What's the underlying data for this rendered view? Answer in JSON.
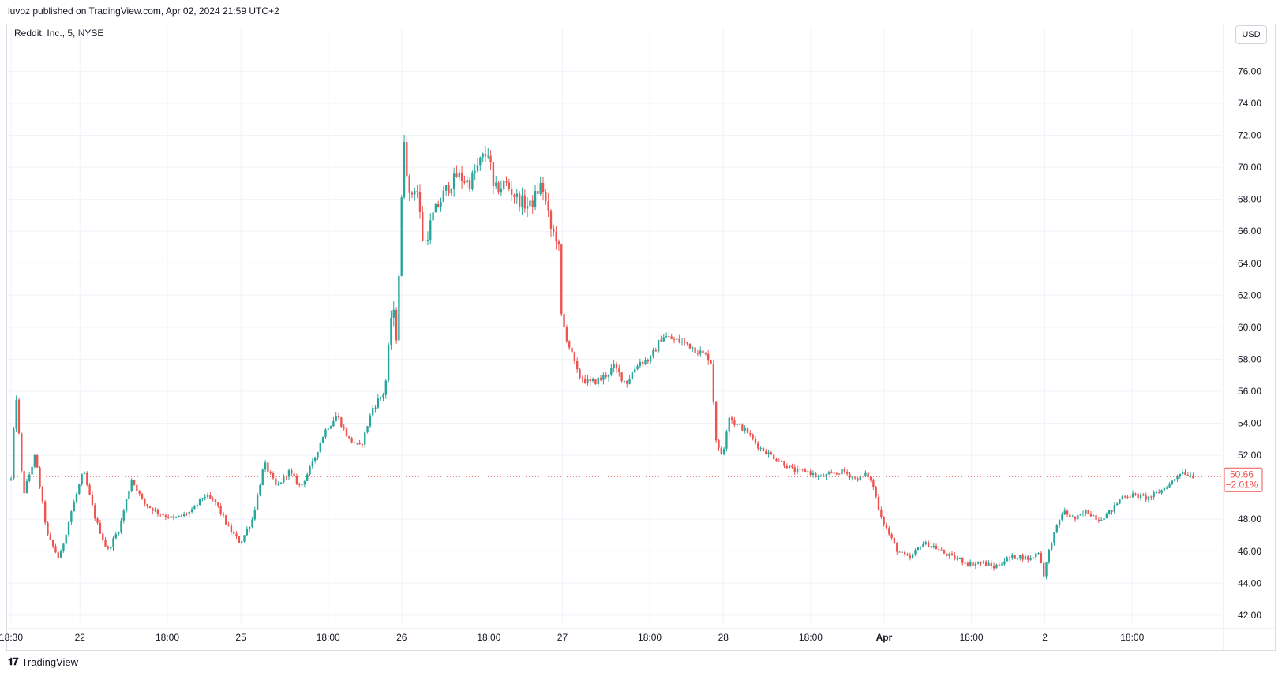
{
  "header": {
    "published": "luvoz published on TradingView.com, Apr 02, 2024 21:59 UTC+2",
    "symbol": "Reddit, Inc., 5, NYSE",
    "currency_button": "USD"
  },
  "footer": {
    "brand": "TradingView",
    "logo": "𝟏𝟕"
  },
  "colors": {
    "up": "#26a69a",
    "down": "#ef5350",
    "grid": "#f0f3fa",
    "axis_text": "#131722"
  },
  "chart_data": {
    "type": "candlestick",
    "symbol": "Reddit, Inc., 5, NYSE",
    "currency": "USD",
    "ylim": [
      41.5,
      77.5
    ],
    "y_ticks": [
      "42.00",
      "44.00",
      "46.00",
      "48.00",
      "50.00",
      "52.00",
      "54.00",
      "56.00",
      "58.00",
      "60.00",
      "62.00",
      "64.00",
      "66.00",
      "68.00",
      "70.00",
      "72.00",
      "74.00",
      "76.00"
    ],
    "x_ticks": [
      "18:30",
      "22",
      "18:00",
      "25",
      "18:00",
      "26",
      "18:00",
      "27",
      "18:00",
      "28",
      "18:00",
      "Apr",
      "18:00",
      "2",
      "18:00"
    ],
    "x_tick_pos": [
      0.0,
      0.0571,
      0.1296,
      0.1905,
      0.2629,
      0.3238,
      0.3962,
      0.4571,
      0.5295,
      0.5905,
      0.6629,
      0.7238,
      0.7962,
      0.8571,
      0.9295
    ],
    "grid": true,
    "last_price": {
      "value": "50.66",
      "change": "−2.01%"
    },
    "path": [
      [
        0.0,
        50.5
      ],
      [
        0.004,
        56.0
      ],
      [
        0.01,
        49.5
      ],
      [
        0.02,
        52.0
      ],
      [
        0.03,
        47.0
      ],
      [
        0.04,
        45.5
      ],
      [
        0.05,
        48.5
      ],
      [
        0.06,
        51.0
      ],
      [
        0.07,
        48.0
      ],
      [
        0.08,
        46.0
      ],
      [
        0.09,
        47.5
      ],
      [
        0.1,
        50.5
      ],
      [
        0.11,
        49.0
      ],
      [
        0.12,
        48.5
      ],
      [
        0.135,
        48.0
      ],
      [
        0.15,
        48.5
      ],
      [
        0.16,
        49.5
      ],
      [
        0.17,
        49.0
      ],
      [
        0.18,
        47.5
      ],
      [
        0.19,
        46.5
      ],
      [
        0.2,
        48.0
      ],
      [
        0.21,
        51.5
      ],
      [
        0.22,
        50.0
      ],
      [
        0.23,
        51.0
      ],
      [
        0.24,
        50.0
      ],
      [
        0.25,
        51.5
      ],
      [
        0.26,
        53.5
      ],
      [
        0.27,
        54.5
      ],
      [
        0.28,
        53.0
      ],
      [
        0.29,
        52.5
      ],
      [
        0.3,
        55.0
      ],
      [
        0.31,
        56.0
      ],
      [
        0.316,
        61.5
      ],
      [
        0.32,
        59.0
      ],
      [
        0.322,
        64.5
      ],
      [
        0.326,
        72.0
      ],
      [
        0.33,
        68.0
      ],
      [
        0.336,
        69.0
      ],
      [
        0.342,
        65.0
      ],
      [
        0.35,
        67.0
      ],
      [
        0.36,
        68.5
      ],
      [
        0.37,
        69.5
      ],
      [
        0.38,
        69.0
      ],
      [
        0.39,
        70.5
      ],
      [
        0.396,
        71.0
      ],
      [
        0.4,
        68.5
      ],
      [
        0.41,
        69.0
      ],
      [
        0.42,
        68.0
      ],
      [
        0.43,
        67.5
      ],
      [
        0.44,
        69.0
      ],
      [
        0.448,
        66.0
      ],
      [
        0.454,
        65.5
      ],
      [
        0.455,
        61.0
      ],
      [
        0.46,
        59.5
      ],
      [
        0.47,
        57.0
      ],
      [
        0.48,
        56.5
      ],
      [
        0.49,
        56.8
      ],
      [
        0.5,
        57.5
      ],
      [
        0.51,
        56.5
      ],
      [
        0.52,
        57.8
      ],
      [
        0.53,
        58.0
      ],
      [
        0.54,
        59.5
      ],
      [
        0.55,
        59.2
      ],
      [
        0.56,
        59.0
      ],
      [
        0.57,
        58.5
      ],
      [
        0.58,
        58.0
      ],
      [
        0.585,
        52.5
      ],
      [
        0.59,
        52.0
      ],
      [
        0.595,
        54.5
      ],
      [
        0.6,
        54.0
      ],
      [
        0.61,
        53.5
      ],
      [
        0.62,
        52.5
      ],
      [
        0.63,
        52.0
      ],
      [
        0.64,
        51.5
      ],
      [
        0.65,
        51.0
      ],
      [
        0.66,
        51.0
      ],
      [
        0.67,
        50.6
      ],
      [
        0.68,
        50.8
      ],
      [
        0.69,
        51.0
      ],
      [
        0.7,
        50.5
      ],
      [
        0.71,
        50.8
      ],
      [
        0.715,
        50.0
      ],
      [
        0.72,
        48.5
      ],
      [
        0.725,
        47.5
      ],
      [
        0.735,
        46.0
      ],
      [
        0.745,
        45.5
      ],
      [
        0.755,
        46.5
      ],
      [
        0.765,
        46.3
      ],
      [
        0.775,
        45.8
      ],
      [
        0.785,
        45.5
      ],
      [
        0.795,
        45.2
      ],
      [
        0.805,
        45.3
      ],
      [
        0.815,
        45.0
      ],
      [
        0.825,
        45.5
      ],
      [
        0.835,
        45.7
      ],
      [
        0.845,
        45.5
      ],
      [
        0.852,
        46.0
      ],
      [
        0.856,
        44.5
      ],
      [
        0.862,
        46.5
      ],
      [
        0.872,
        48.5
      ],
      [
        0.882,
        48.0
      ],
      [
        0.892,
        48.5
      ],
      [
        0.902,
        48.0
      ],
      [
        0.912,
        48.5
      ],
      [
        0.922,
        49.5
      ],
      [
        0.932,
        49.5
      ],
      [
        0.942,
        49.3
      ],
      [
        0.952,
        49.7
      ],
      [
        0.962,
        50.3
      ],
      [
        0.97,
        51.0
      ],
      [
        0.98,
        50.7
      ]
    ]
  }
}
